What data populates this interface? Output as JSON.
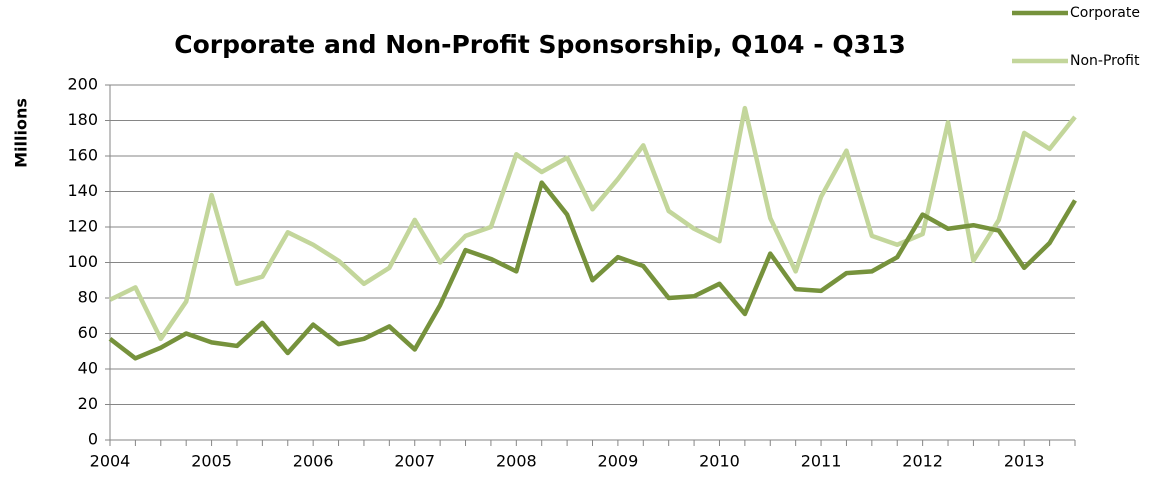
{
  "chart_data": {
    "type": "line",
    "title": "Corporate and Non-Profit Sponsorship, Q104 - Q313",
    "y_label": "Millions",
    "categories": [
      "2004",
      null,
      null,
      null,
      "2005",
      null,
      null,
      null,
      "2006",
      null,
      null,
      null,
      "2007",
      null,
      null,
      null,
      "2008",
      null,
      null,
      null,
      "2009",
      null,
      null,
      null,
      "2010",
      null,
      null,
      null,
      "2011",
      null,
      null,
      null,
      "2012",
      null,
      null,
      null,
      "2013",
      null,
      null
    ],
    "series": [
      {
        "name": "Corporate",
        "color": "#76923c",
        "values": [
          57,
          46,
          52,
          60,
          55,
          53,
          66,
          49,
          65,
          54,
          57,
          64,
          51,
          76,
          107,
          102,
          95,
          145,
          127,
          90,
          103,
          98,
          80,
          81,
          88,
          71,
          105,
          85,
          84,
          94,
          95,
          103,
          127,
          119,
          121,
          118,
          97,
          111,
          135
        ]
      },
      {
        "name": "Non-Profit",
        "color": "#c3d69b",
        "values": [
          79,
          86,
          57,
          78,
          138,
          88,
          92,
          117,
          110,
          101,
          88,
          97,
          124,
          100,
          115,
          120,
          161,
          151,
          159,
          130,
          147,
          166,
          129,
          119,
          112,
          187,
          125,
          95,
          137,
          163,
          115,
          110,
          116,
          179,
          101,
          124,
          173,
          164,
          182
        ]
      }
    ],
    "ylim": [
      0,
      200
    ],
    "yticks": [
      0,
      20,
      40,
      60,
      80,
      100,
      120,
      140,
      160,
      180,
      200
    ],
    "grid": true,
    "legend": "top-right"
  }
}
